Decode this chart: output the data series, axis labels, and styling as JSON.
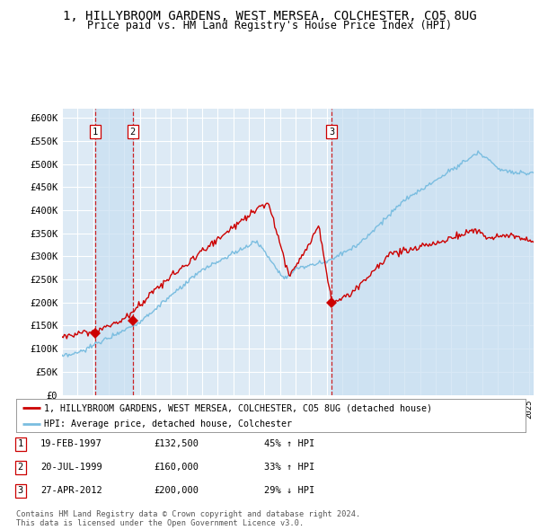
{
  "title": "1, HILLYBROOM GARDENS, WEST MERSEA, COLCHESTER, CO5 8UG",
  "subtitle": "Price paid vs. HM Land Registry's House Price Index (HPI)",
  "ylim": [
    0,
    620000
  ],
  "yticks": [
    0,
    50000,
    100000,
    150000,
    200000,
    250000,
    300000,
    350000,
    400000,
    450000,
    500000,
    550000,
    600000
  ],
  "ytick_labels": [
    "£0",
    "£50K",
    "£100K",
    "£150K",
    "£200K",
    "£250K",
    "£300K",
    "£350K",
    "£400K",
    "£450K",
    "£500K",
    "£550K",
    "£600K"
  ],
  "background_color": "#ffffff",
  "plot_bg_color": "#ddeaf5",
  "grid_color": "#ffffff",
  "title_fontsize": 10,
  "subtitle_fontsize": 8.5,
  "purchases": [
    {
      "label": "1",
      "date_num": 1997.13,
      "price": 132500
    },
    {
      "label": "2",
      "date_num": 1999.55,
      "price": 160000
    },
    {
      "label": "3",
      "date_num": 2012.32,
      "price": 200000
    }
  ],
  "legend_line1": "1, HILLYBROOM GARDENS, WEST MERSEA, COLCHESTER, CO5 8UG (detached house)",
  "legend_line2": "HPI: Average price, detached house, Colchester",
  "table_rows": [
    {
      "num": "1",
      "date": "19-FEB-1997",
      "price": "£132,500",
      "hpi": "45% ↑ HPI"
    },
    {
      "num": "2",
      "date": "20-JUL-1999",
      "price": "£160,000",
      "hpi": "33% ↑ HPI"
    },
    {
      "num": "3",
      "date": "27-APR-2012",
      "price": "£200,000",
      "hpi": "29% ↓ HPI"
    }
  ],
  "footnote": "Contains HM Land Registry data © Crown copyright and database right 2024.\nThis data is licensed under the Open Government Licence v3.0.",
  "hpi_color": "#7abde0",
  "price_color": "#cc0000",
  "vline_color": "#cc0000",
  "vline_shade_color": "#c8dff2",
  "marker_color": "#cc0000",
  "xlim_left": 1995.0,
  "xlim_right": 2025.3
}
